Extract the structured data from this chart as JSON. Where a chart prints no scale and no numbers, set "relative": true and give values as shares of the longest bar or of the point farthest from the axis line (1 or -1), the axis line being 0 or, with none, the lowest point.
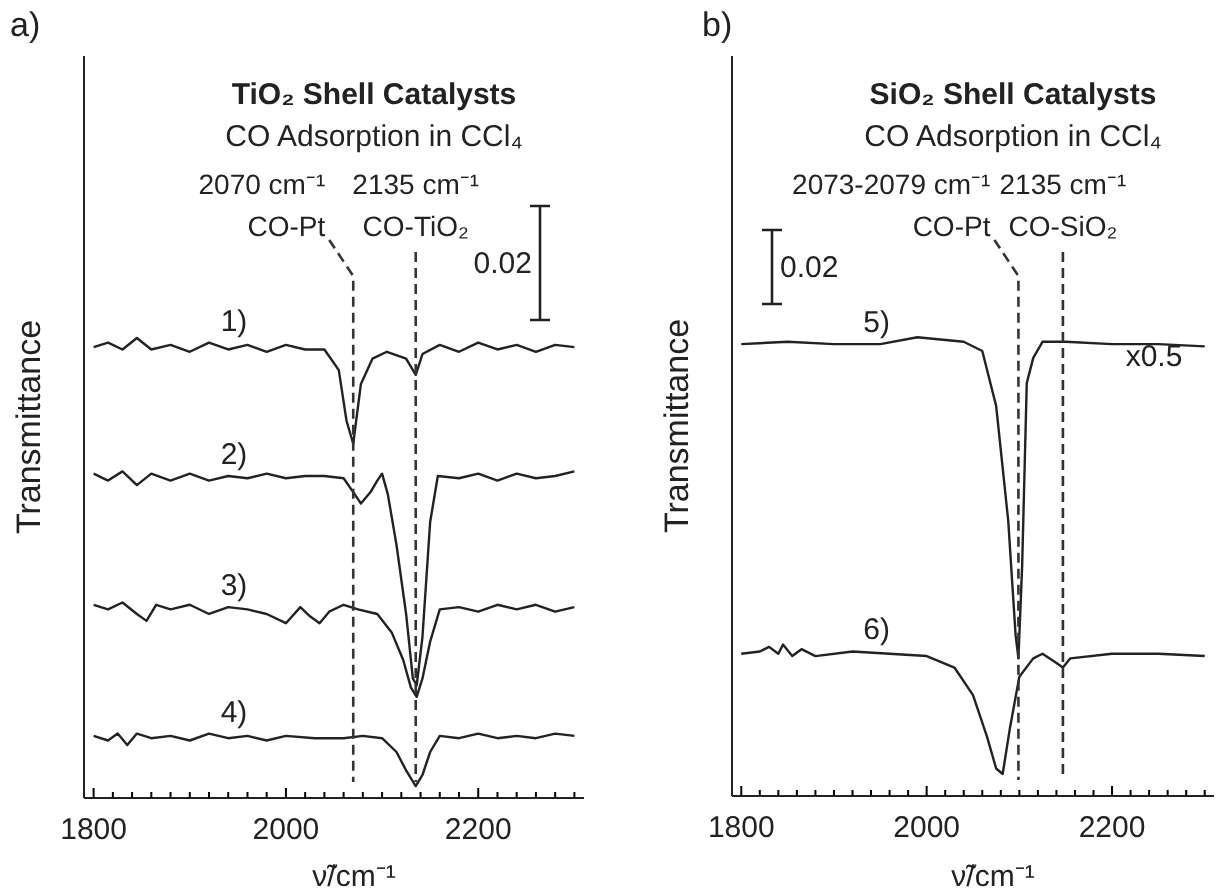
{
  "chart_data": [
    {
      "type": "line",
      "title": "TiO₂ Shell Catalysts",
      "subtitle": "CO Adsorption in CCl₄",
      "xlabel": "ν̃/cm⁻¹",
      "ylabel": "Transmittance",
      "relative": true,
      "legend": false,
      "xlim": [
        1790,
        2310
      ],
      "xticks": [
        1800,
        {
          "value": 1820,
          "label": null
        },
        {
          "value": 1840,
          "label": null
        },
        {
          "value": 1860,
          "label": null
        },
        {
          "value": 1880,
          "label": null
        },
        {
          "value": 1900,
          "label": null
        },
        {
          "value": 1920,
          "label": null
        },
        {
          "value": 1940,
          "label": null
        },
        {
          "value": 1960,
          "label": null
        },
        {
          "value": 1980,
          "label": null
        },
        2000,
        {
          "value": 2020,
          "label": null
        },
        {
          "value": 2040,
          "label": null
        },
        {
          "value": 2060,
          "label": null
        },
        {
          "value": 2080,
          "label": null
        },
        {
          "value": 2100,
          "label": null
        },
        {
          "value": 2120,
          "label": null
        },
        {
          "value": 2140,
          "label": null
        },
        {
          "value": 2160,
          "label": null
        },
        {
          "value": 2180,
          "label": null
        },
        2200,
        {
          "value": 2220,
          "label": null
        },
        {
          "value": 2240,
          "label": null
        },
        {
          "value": 2260,
          "label": null
        },
        {
          "value": 2280,
          "label": null
        },
        {
          "value": 2300,
          "label": null
        }
      ],
      "annotations": [
        "a)",
        "0.02"
      ],
      "ref_lines": [
        {
          "axis": "x",
          "value": 2070,
          "label": "2070 cm⁻¹\nCO-Pt",
          "line_style": "dashed",
          "color": "#333333"
        },
        {
          "axis": "x",
          "value": 2135,
          "label": "2135 cm⁻¹\nCO-TiO₂",
          "line_style": "dashed",
          "color": "#333333"
        }
      ],
      "series": [
        {
          "name": "1)",
          "color": "#222222",
          "x": [
            1800,
            1815,
            1830,
            1845,
            1860,
            1880,
            1900,
            1920,
            1940,
            1960,
            1980,
            2000,
            2020,
            2040,
            2055,
            2063,
            2070,
            2078,
            2090,
            2105,
            2125,
            2135,
            2142,
            2160,
            2180,
            2200,
            2220,
            2240,
            2260,
            2280,
            2300
          ],
          "values": [
            0.98,
            0.99,
            0.975,
            1.0,
            0.975,
            0.985,
            0.97,
            0.99,
            0.975,
            0.985,
            0.97,
            0.985,
            0.975,
            0.975,
            0.93,
            0.82,
            0.77,
            0.9,
            0.955,
            0.97,
            0.955,
            0.92,
            0.965,
            0.985,
            0.97,
            0.99,
            0.975,
            0.985,
            0.97,
            0.985,
            0.98
          ]
        },
        {
          "name": "2)",
          "color": "#222222",
          "x": [
            1800,
            1815,
            1830,
            1845,
            1860,
            1880,
            1900,
            1920,
            1940,
            1960,
            1980,
            2000,
            2020,
            2040,
            2060,
            2070,
            2078,
            2088,
            2095,
            2100,
            2106,
            2115,
            2125,
            2132,
            2136,
            2142,
            2150,
            2158,
            2180,
            2200,
            2220,
            2240,
            2260,
            2280,
            2300
          ],
          "values": [
            0.705,
            0.69,
            0.71,
            0.68,
            0.705,
            0.69,
            0.705,
            0.69,
            0.7,
            0.695,
            0.705,
            0.695,
            0.7,
            0.7,
            0.695,
            0.665,
            0.64,
            0.665,
            0.69,
            0.705,
            0.66,
            0.55,
            0.4,
            0.26,
            0.245,
            0.35,
            0.6,
            0.7,
            0.695,
            0.705,
            0.69,
            0.705,
            0.695,
            0.7,
            0.71
          ]
        },
        {
          "name": "3)",
          "color": "#222222",
          "x": [
            1800,
            1815,
            1830,
            1845,
            1855,
            1865,
            1880,
            1900,
            1920,
            1940,
            1960,
            1980,
            2000,
            2015,
            2025,
            2035,
            2045,
            2060,
            2075,
            2095,
            2110,
            2122,
            2130,
            2136,
            2142,
            2150,
            2160,
            2180,
            2200,
            2220,
            2240,
            2260,
            2280,
            2300
          ],
          "values": [
            0.42,
            0.41,
            0.425,
            0.4,
            0.385,
            0.42,
            0.41,
            0.42,
            0.4,
            0.415,
            0.41,
            0.4,
            0.38,
            0.415,
            0.395,
            0.38,
            0.405,
            0.42,
            0.41,
            0.4,
            0.36,
            0.3,
            0.24,
            0.22,
            0.26,
            0.34,
            0.41,
            0.415,
            0.405,
            0.42,
            0.41,
            0.42,
            0.405,
            0.415
          ]
        },
        {
          "name": "4)",
          "color": "#222222",
          "x": [
            1800,
            1815,
            1825,
            1835,
            1845,
            1860,
            1880,
            1900,
            1920,
            1940,
            1960,
            1980,
            2000,
            2030,
            2060,
            2080,
            2100,
            2115,
            2125,
            2135,
            2142,
            2150,
            2160,
            2180,
            2200,
            2220,
            2240,
            2260,
            2280,
            2300
          ],
          "values": [
            0.135,
            0.125,
            0.14,
            0.115,
            0.14,
            0.13,
            0.135,
            0.125,
            0.14,
            0.13,
            0.135,
            0.125,
            0.135,
            0.13,
            0.13,
            0.135,
            0.13,
            0.1,
            0.06,
            0.026,
            0.05,
            0.1,
            0.135,
            0.13,
            0.14,
            0.13,
            0.135,
            0.13,
            0.14,
            0.135
          ]
        }
      ]
    },
    {
      "type": "line",
      "title": "SiO₂ Shell Catalysts",
      "subtitle": "CO Adsorption in CCl₄",
      "xlabel": "ν̃/cm⁻¹",
      "ylabel": "Transmittance",
      "relative": true,
      "legend": false,
      "xlim": [
        1790,
        2310
      ],
      "xticks": [
        1800,
        {
          "value": 1820,
          "label": null
        },
        {
          "value": 1840,
          "label": null
        },
        {
          "value": 1860,
          "label": null
        },
        {
          "value": 1880,
          "label": null
        },
        {
          "value": 1900,
          "label": null
        },
        {
          "value": 1920,
          "label": null
        },
        {
          "value": 1940,
          "label": null
        },
        {
          "value": 1960,
          "label": null
        },
        {
          "value": 1980,
          "label": null
        },
        2000,
        {
          "value": 2020,
          "label": null
        },
        {
          "value": 2040,
          "label": null
        },
        {
          "value": 2060,
          "label": null
        },
        {
          "value": 2080,
          "label": null
        },
        {
          "value": 2100,
          "label": null
        },
        {
          "value": 2120,
          "label": null
        },
        {
          "value": 2140,
          "label": null
        },
        {
          "value": 2160,
          "label": null
        },
        {
          "value": 2180,
          "label": null
        },
        2200,
        {
          "value": 2220,
          "label": null
        },
        {
          "value": 2240,
          "label": null
        },
        {
          "value": 2260,
          "label": null
        },
        {
          "value": 2280,
          "label": null
        },
        {
          "value": 2300,
          "label": null
        }
      ],
      "annotations": [
        "b)",
        "0.02",
        "x0.5"
      ],
      "ref_lines": [
        {
          "axis": "x",
          "value": 2099,
          "label": "2073-2079 cm⁻¹\nCO-Pt",
          "line_style": "dashed",
          "color": "#333333"
        },
        {
          "axis": "x",
          "value": 2147,
          "label": "2135 cm⁻¹\nCO-SiO₂",
          "line_style": "dashed",
          "color": "#333333"
        }
      ],
      "series": [
        {
          "name": "5)",
          "color": "#222222",
          "x": [
            1800,
            1850,
            1900,
            1950,
            1990,
            2040,
            2060,
            2075,
            2088,
            2096,
            2099,
            2103,
            2108,
            2115,
            2125,
            2150,
            2200,
            2250,
            2300
          ],
          "values": [
            0.985,
            0.99,
            0.985,
            0.985,
            1.0,
            0.99,
            0.97,
            0.85,
            0.6,
            0.35,
            0.3,
            0.5,
            0.9,
            0.955,
            0.99,
            0.99,
            0.985,
            0.985,
            0.98
          ]
        },
        {
          "name": "6)",
          "color": "#222222",
          "x": [
            1800,
            1820,
            1830,
            1840,
            1845,
            1855,
            1865,
            1880,
            1920,
            1960,
            2000,
            2030,
            2050,
            2065,
            2075,
            2082,
            2090,
            2100,
            2115,
            2125,
            2140,
            2147,
            2155,
            2200,
            2250,
            2300
          ],
          "values": [
            0.31,
            0.315,
            0.325,
            0.31,
            0.33,
            0.305,
            0.32,
            0.305,
            0.315,
            0.31,
            0.305,
            0.28,
            0.22,
            0.13,
            0.06,
            0.048,
            0.15,
            0.26,
            0.3,
            0.31,
            0.29,
            0.28,
            0.3,
            0.31,
            0.31,
            0.305
          ]
        }
      ]
    }
  ]
}
